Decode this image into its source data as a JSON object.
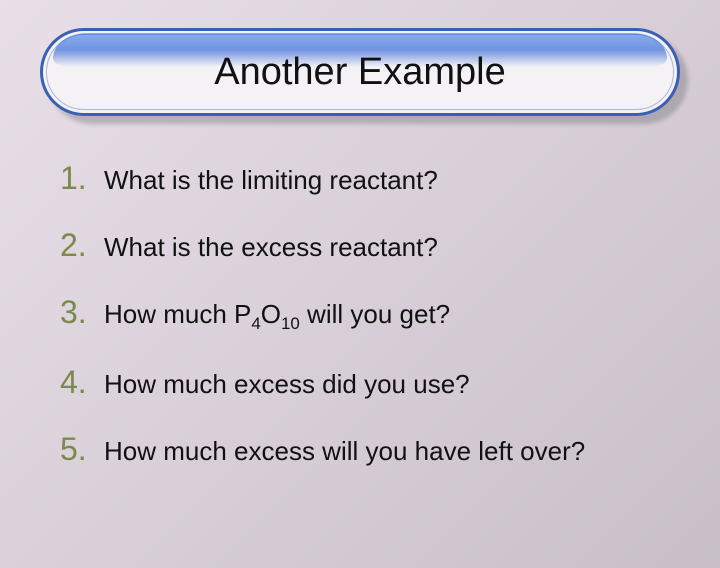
{
  "title": "Another Example",
  "number_color": "#7a8a4a",
  "text_color": "#111111",
  "pill_border": "#3a5fb5",
  "pill_fill": "#f5f2f5",
  "background_gradient": [
    "#e8dfe8",
    "#d8cfd8",
    "#c8bfc8"
  ],
  "items": [
    {
      "n": "1.",
      "text": "What is the limiting reactant?"
    },
    {
      "n": "2.",
      "text": "What is the excess reactant?"
    },
    {
      "n": "3.",
      "text_html": "How much P<sub>4</sub>O<sub>10</sub> will you get?"
    },
    {
      "n": "4.",
      "text": "How much excess did you use?"
    },
    {
      "n": "5.",
      "text": "How much excess will you have left over?"
    }
  ]
}
